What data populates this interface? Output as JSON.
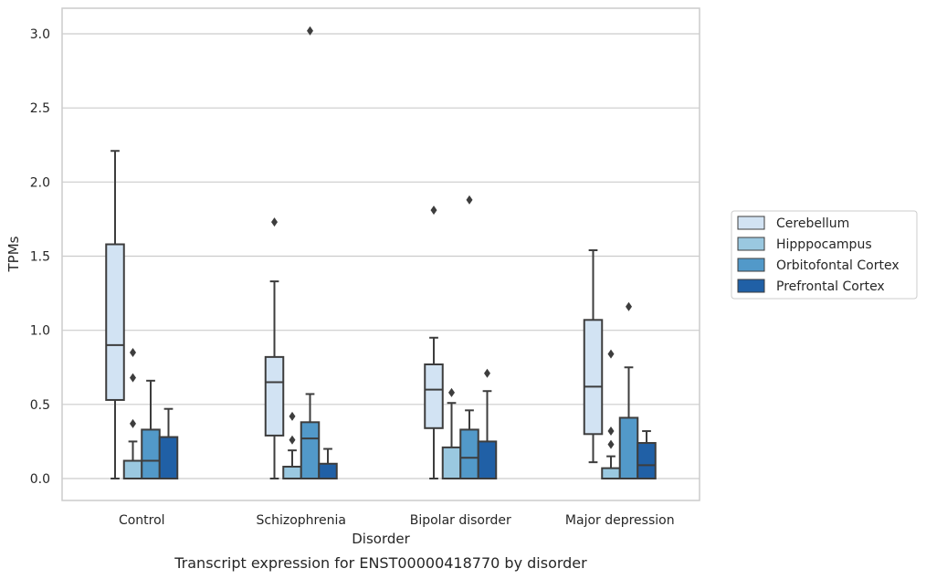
{
  "chart_data": {
    "type": "box",
    "categories": [
      "Control",
      "Schizophrenia",
      "Bipolar disorder",
      "Major depression"
    ],
    "xlabel": "Disorder",
    "ylabel": "TPMs",
    "caption": "Transcript expression for ENST00000418770 by disorder",
    "ylim": [
      -0.15,
      3.18
    ],
    "yticks": [
      0.0,
      0.5,
      1.0,
      1.5,
      2.0,
      2.5,
      3.0
    ],
    "ytick_labels": [
      "0.0",
      "0.5",
      "1.0",
      "1.5",
      "2.0",
      "2.5",
      "3.0"
    ],
    "grid": "horizontal",
    "legend_position": "right",
    "colors": {
      "Cerebellum": "#d2e3f3",
      "Hipppocampus": "#9ac8e0",
      "Orbitofontal Cortex": "#5299c9",
      "Prefrontal Cortex": "#2060a6",
      "line": "#3d3d3d",
      "grid": "#cccccc",
      "frame": "#cccccc"
    },
    "series": [
      {
        "name": "Cerebellum",
        "boxes": [
          {
            "whisker_low": 0.0,
            "q1": 0.53,
            "median": 0.9,
            "q3": 1.58,
            "whisker_high": 2.21,
            "outliers": []
          },
          {
            "whisker_low": 0.0,
            "q1": 0.29,
            "median": 0.65,
            "q3": 0.82,
            "whisker_high": 1.33,
            "outliers": [
              1.73
            ]
          },
          {
            "whisker_low": 0.0,
            "q1": 0.34,
            "median": 0.6,
            "q3": 0.77,
            "whisker_high": 0.95,
            "outliers": [
              1.81
            ]
          },
          {
            "whisker_low": 0.11,
            "q1": 0.3,
            "median": 0.62,
            "q3": 1.07,
            "whisker_high": 1.54,
            "outliers": []
          }
        ]
      },
      {
        "name": "Hipppocampus",
        "boxes": [
          {
            "whisker_low": 0.0,
            "q1": 0.0,
            "median": 0.0,
            "q3": 0.12,
            "whisker_high": 0.25,
            "outliers": [
              0.37,
              0.68,
              0.85
            ]
          },
          {
            "whisker_low": 0.0,
            "q1": 0.0,
            "median": 0.0,
            "q3": 0.08,
            "whisker_high": 0.19,
            "outliers": [
              0.26,
              0.42
            ]
          },
          {
            "whisker_low": 0.0,
            "q1": 0.0,
            "median": 0.0,
            "q3": 0.21,
            "whisker_high": 0.51,
            "outliers": [
              0.58
            ]
          },
          {
            "whisker_low": 0.0,
            "q1": 0.0,
            "median": 0.0,
            "q3": 0.07,
            "whisker_high": 0.15,
            "outliers": [
              0.23,
              0.32,
              0.84
            ]
          }
        ]
      },
      {
        "name": "Orbitofontal Cortex",
        "boxes": [
          {
            "whisker_low": 0.0,
            "q1": 0.0,
            "median": 0.12,
            "q3": 0.33,
            "whisker_high": 0.66,
            "outliers": []
          },
          {
            "whisker_low": 0.0,
            "q1": 0.0,
            "median": 0.27,
            "q3": 0.38,
            "whisker_high": 0.57,
            "outliers": [
              3.02
            ]
          },
          {
            "whisker_low": 0.0,
            "q1": 0.0,
            "median": 0.14,
            "q3": 0.33,
            "whisker_high": 0.46,
            "outliers": [
              1.88
            ]
          },
          {
            "whisker_low": 0.0,
            "q1": 0.0,
            "median": 0.0,
            "q3": 0.41,
            "whisker_high": 0.75,
            "outliers": [
              1.16
            ]
          }
        ]
      },
      {
        "name": "Prefrontal Cortex",
        "boxes": [
          {
            "whisker_low": 0.0,
            "q1": 0.0,
            "median": 0.0,
            "q3": 0.28,
            "whisker_high": 0.47,
            "outliers": []
          },
          {
            "whisker_low": 0.0,
            "q1": 0.0,
            "median": 0.0,
            "q3": 0.1,
            "whisker_high": 0.2,
            "outliers": []
          },
          {
            "whisker_low": 0.0,
            "q1": 0.0,
            "median": 0.0,
            "q3": 0.25,
            "whisker_high": 0.59,
            "outliers": [
              0.71
            ]
          },
          {
            "whisker_low": 0.0,
            "q1": 0.0,
            "median": 0.09,
            "q3": 0.24,
            "whisker_high": 0.32,
            "outliers": []
          }
        ]
      }
    ]
  }
}
